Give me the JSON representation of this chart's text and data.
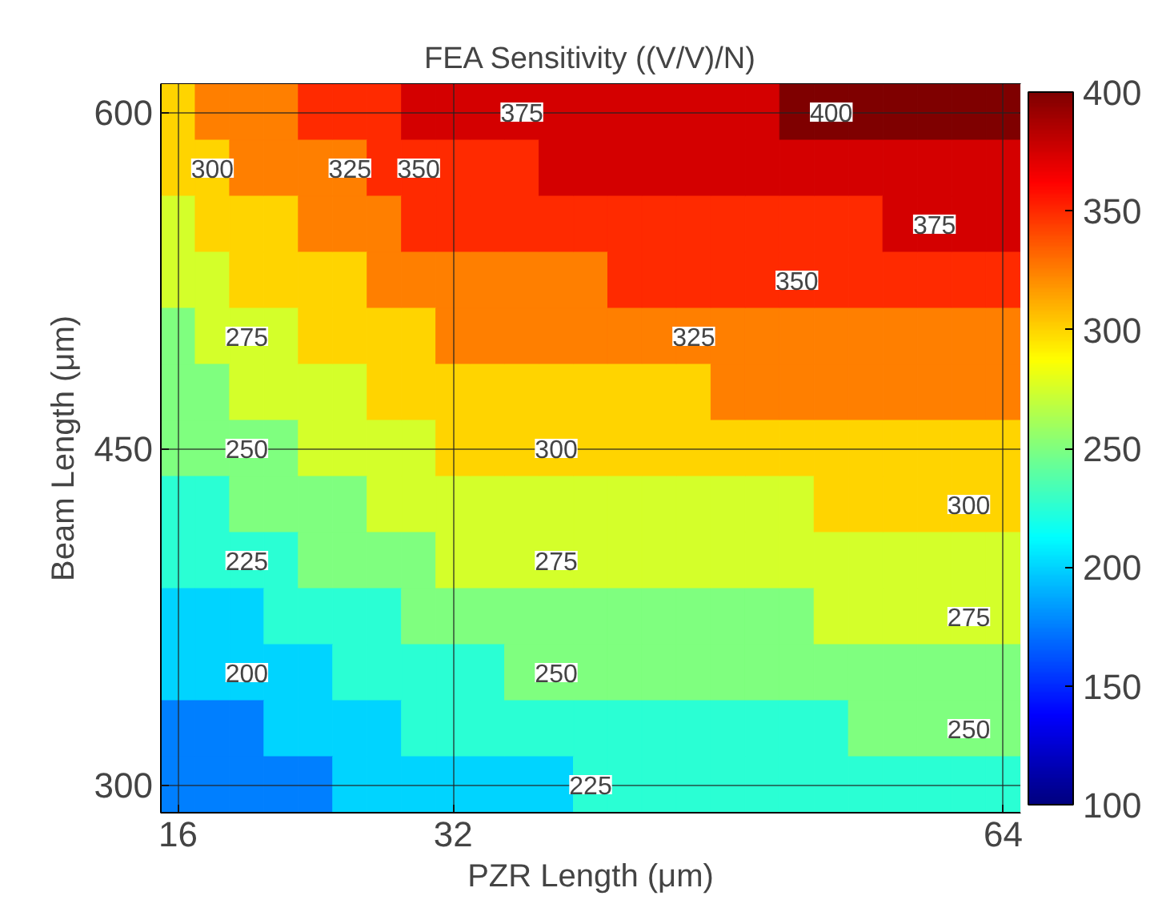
{
  "chart_data": {
    "type": "heatmap",
    "title": "FEA Sensitivity ((V/V)/N)",
    "xlabel": "PZR Length (μm)",
    "ylabel": "Beam Length (μm)",
    "categories": [
      "16",
      null,
      null,
      null,
      null,
      null,
      null,
      null,
      "32",
      null,
      null,
      null,
      null,
      null,
      null,
      null,
      null,
      null,
      null,
      null,
      null,
      null,
      null,
      null,
      "64"
    ],
    "y_categories": [
      "600",
      null,
      null,
      null,
      null,
      null,
      "450",
      null,
      null,
      null,
      null,
      null,
      "300"
    ],
    "cells": [
      [
        300,
        325,
        325,
        325,
        350,
        350,
        350,
        375,
        375,
        375,
        375,
        375,
        375,
        375,
        375,
        375,
        375,
        375,
        400,
        400,
        400,
        400,
        400,
        400,
        400
      ],
      [
        300,
        300,
        325,
        325,
        325,
        325,
        350,
        350,
        350,
        350,
        350,
        375,
        375,
        375,
        375,
        375,
        375,
        375,
        375,
        375,
        375,
        375,
        375,
        375,
        375
      ],
      [
        275,
        300,
        300,
        300,
        325,
        325,
        325,
        350,
        350,
        350,
        350,
        350,
        350,
        350,
        350,
        350,
        350,
        350,
        350,
        350,
        350,
        375,
        375,
        375,
        375
      ],
      [
        275,
        275,
        300,
        300,
        300,
        300,
        325,
        325,
        325,
        325,
        325,
        325,
        325,
        350,
        350,
        350,
        350,
        350,
        350,
        350,
        350,
        350,
        350,
        350,
        350
      ],
      [
        250,
        275,
        275,
        275,
        300,
        300,
        300,
        300,
        325,
        325,
        325,
        325,
        325,
        325,
        325,
        325,
        325,
        325,
        325,
        325,
        325,
        325,
        325,
        325,
        325
      ],
      [
        250,
        250,
        275,
        275,
        275,
        275,
        300,
        300,
        300,
        300,
        300,
        300,
        300,
        300,
        300,
        300,
        325,
        325,
        325,
        325,
        325,
        325,
        325,
        325,
        325
      ],
      [
        250,
        250,
        250,
        250,
        275,
        275,
        275,
        275,
        300,
        300,
        300,
        300,
        300,
        300,
        300,
        300,
        300,
        300,
        300,
        300,
        300,
        300,
        300,
        300,
        300
      ],
      [
        225,
        225,
        250,
        250,
        250,
        250,
        275,
        275,
        275,
        275,
        275,
        275,
        275,
        275,
        275,
        275,
        275,
        275,
        275,
        300,
        300,
        300,
        300,
        300,
        300
      ],
      [
        225,
        225,
        225,
        225,
        250,
        250,
        250,
        250,
        275,
        275,
        275,
        275,
        275,
        275,
        275,
        275,
        275,
        275,
        275,
        275,
        275,
        275,
        275,
        275,
        275
      ],
      [
        200,
        200,
        200,
        225,
        225,
        225,
        225,
        250,
        250,
        250,
        250,
        250,
        250,
        250,
        250,
        250,
        250,
        250,
        250,
        275,
        275,
        275,
        275,
        275,
        275
      ],
      [
        200,
        200,
        200,
        200,
        200,
        225,
        225,
        225,
        225,
        225,
        250,
        250,
        250,
        250,
        250,
        250,
        250,
        250,
        250,
        250,
        250,
        250,
        250,
        250,
        250
      ],
      [
        175,
        175,
        175,
        200,
        200,
        200,
        200,
        225,
        225,
        225,
        225,
        225,
        225,
        225,
        225,
        225,
        225,
        225,
        225,
        225,
        250,
        250,
        250,
        250,
        250
      ],
      [
        175,
        175,
        175,
        175,
        175,
        200,
        200,
        200,
        200,
        200,
        200,
        200,
        225,
        225,
        225,
        225,
        225,
        225,
        225,
        225,
        225,
        225,
        225,
        225,
        225
      ]
    ],
    "cell_labels": [
      [
        null,
        null,
        null,
        null,
        null,
        null,
        null,
        null,
        null,
        null,
        "375",
        null,
        null,
        null,
        null,
        null,
        null,
        null,
        null,
        "400",
        null,
        null,
        null,
        null,
        null
      ],
      [
        null,
        "300",
        null,
        null,
        null,
        "325",
        null,
        "350",
        null,
        null,
        null,
        null,
        null,
        null,
        null,
        null,
        null,
        null,
        null,
        null,
        null,
        null,
        null,
        null,
        null
      ],
      [
        null,
        null,
        null,
        null,
        null,
        null,
        null,
        null,
        null,
        null,
        null,
        null,
        null,
        null,
        null,
        null,
        null,
        null,
        null,
        null,
        null,
        null,
        "375",
        null,
        null
      ],
      [
        null,
        null,
        null,
        null,
        null,
        null,
        null,
        null,
        null,
        null,
        null,
        null,
        null,
        null,
        null,
        null,
        null,
        null,
        "350",
        null,
        null,
        null,
        null,
        null,
        null
      ],
      [
        null,
        null,
        "275",
        null,
        null,
        null,
        null,
        null,
        null,
        null,
        null,
        null,
        null,
        null,
        null,
        "325",
        null,
        null,
        null,
        null,
        null,
        null,
        null,
        null,
        null
      ],
      [
        null,
        null,
        null,
        null,
        null,
        null,
        null,
        null,
        null,
        null,
        null,
        null,
        null,
        null,
        null,
        null,
        null,
        null,
        null,
        null,
        null,
        null,
        null,
        null,
        null
      ],
      [
        null,
        null,
        "250",
        null,
        null,
        null,
        null,
        null,
        null,
        null,
        null,
        "300",
        null,
        null,
        null,
        null,
        null,
        null,
        null,
        null,
        null,
        null,
        null,
        null,
        null
      ],
      [
        null,
        null,
        null,
        null,
        null,
        null,
        null,
        null,
        null,
        null,
        null,
        null,
        null,
        null,
        null,
        null,
        null,
        null,
        null,
        null,
        null,
        null,
        null,
        "300",
        null
      ],
      [
        null,
        null,
        "225",
        null,
        null,
        null,
        null,
        null,
        null,
        null,
        null,
        "275",
        null,
        null,
        null,
        null,
        null,
        null,
        null,
        null,
        null,
        null,
        null,
        null,
        null
      ],
      [
        null,
        null,
        null,
        null,
        null,
        null,
        null,
        null,
        null,
        null,
        null,
        null,
        null,
        null,
        null,
        null,
        null,
        null,
        null,
        null,
        null,
        null,
        null,
        "275",
        null
      ],
      [
        null,
        null,
        "200",
        null,
        null,
        null,
        null,
        null,
        null,
        null,
        null,
        "250",
        null,
        null,
        null,
        null,
        null,
        null,
        null,
        null,
        null,
        null,
        null,
        null,
        null
      ],
      [
        null,
        null,
        null,
        null,
        null,
        null,
        null,
        null,
        null,
        null,
        null,
        null,
        null,
        null,
        null,
        null,
        null,
        null,
        null,
        null,
        null,
        null,
        null,
        "250",
        null
      ],
      [
        null,
        null,
        null,
        null,
        null,
        null,
        null,
        null,
        null,
        null,
        null,
        null,
        "225",
        null,
        null,
        null,
        null,
        null,
        null,
        null,
        null,
        null,
        null,
        null,
        null
      ]
    ],
    "clim": [
      100,
      400
    ],
    "cticks": [
      100,
      150,
      200,
      250,
      300,
      350,
      400
    ],
    "grid": true
  }
}
